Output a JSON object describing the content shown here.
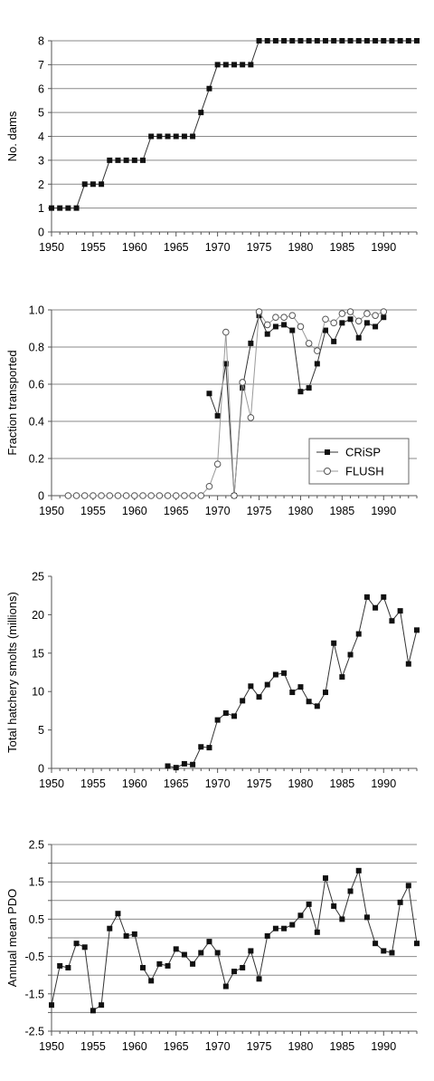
{
  "chart_data": [
    {
      "type": "line",
      "ylabel": "No. dams",
      "xlim": [
        1950,
        1994
      ],
      "ylim": [
        0,
        8
      ],
      "x_ticks": [
        1950,
        1955,
        1960,
        1965,
        1970,
        1975,
        1980,
        1985,
        1990
      ],
      "y_ticks": [
        0,
        1,
        2,
        3,
        4,
        5,
        6,
        7,
        8
      ],
      "y_tick_labels": [
        "0",
        "1",
        "2",
        "3",
        "4",
        "5",
        "6",
        "7",
        "8"
      ],
      "grid": true,
      "series": [
        {
          "marker": "square-filled",
          "x": [
            1950,
            1951,
            1952,
            1953,
            1954,
            1955,
            1956,
            1957,
            1958,
            1959,
            1960,
            1961,
            1962,
            1963,
            1964,
            1965,
            1966,
            1967,
            1968,
            1969,
            1970,
            1971,
            1972,
            1973,
            1974,
            1975,
            1976,
            1977,
            1978,
            1979,
            1980,
            1981,
            1982,
            1983,
            1984,
            1985,
            1986,
            1987,
            1988,
            1989,
            1990,
            1991,
            1992,
            1993,
            1994
          ],
          "y": [
            1,
            1,
            1,
            1,
            2,
            2,
            2,
            3,
            3,
            3,
            3,
            3,
            4,
            4,
            4,
            4,
            4,
            4,
            5,
            6,
            7,
            7,
            7,
            7,
            7,
            8,
            8,
            8,
            8,
            8,
            8,
            8,
            8,
            8,
            8,
            8,
            8,
            8,
            8,
            8,
            8,
            8,
            8,
            8,
            8
          ]
        }
      ]
    },
    {
      "type": "line",
      "ylabel": "Fraction transported",
      "xlim": [
        1950,
        1994
      ],
      "ylim": [
        0,
        1.0
      ],
      "x_ticks": [
        1950,
        1955,
        1960,
        1965,
        1970,
        1975,
        1980,
        1985,
        1990
      ],
      "y_ticks": [
        0,
        0.2,
        0.4,
        0.6,
        0.8,
        1.0
      ],
      "y_tick_labels": [
        "0",
        "0.2",
        "0.4",
        "0.6",
        "0.8",
        "1.0"
      ],
      "grid": true,
      "legend": "lower-right",
      "series": [
        {
          "name": "CRiSP",
          "marker": "square-filled",
          "x": [
            1969,
            1970,
            1971,
            1972,
            1973,
            1974,
            1975,
            1976,
            1977,
            1978,
            1979,
            1980,
            1981,
            1982,
            1983,
            1984,
            1985,
            1986,
            1987,
            1988,
            1989,
            1990
          ],
          "y": [
            0.55,
            0.43,
            0.71,
            0.0,
            0.58,
            0.82,
            0.97,
            0.87,
            0.91,
            0.92,
            0.89,
            0.56,
            0.58,
            0.71,
            0.89,
            0.83,
            0.93,
            0.95,
            0.85,
            0.93,
            0.91,
            0.96
          ]
        },
        {
          "name": "FLUSH",
          "marker": "circle-open",
          "x": [
            1952,
            1953,
            1954,
            1955,
            1956,
            1957,
            1958,
            1959,
            1960,
            1961,
            1962,
            1963,
            1964,
            1965,
            1966,
            1967,
            1968,
            1969,
            1970,
            1971,
            1972,
            1973,
            1974,
            1975,
            1976,
            1977,
            1978,
            1979,
            1980,
            1981,
            1982,
            1983,
            1984,
            1985,
            1986,
            1987,
            1988,
            1989,
            1990
          ],
          "y": [
            0,
            0,
            0,
            0,
            0,
            0,
            0,
            0,
            0,
            0,
            0,
            0,
            0,
            0,
            0,
            0,
            0,
            0.05,
            0.17,
            0.88,
            0.0,
            0.61,
            0.42,
            0.99,
            0.92,
            0.96,
            0.96,
            0.97,
            0.91,
            0.82,
            0.78,
            0.95,
            0.93,
            0.98,
            0.99,
            0.94,
            0.98,
            0.97,
            0.99
          ]
        }
      ]
    },
    {
      "type": "line",
      "ylabel": "Total hatchery smolts (millions)",
      "xlim": [
        1950,
        1994
      ],
      "ylim": [
        0,
        25
      ],
      "x_ticks": [
        1950,
        1955,
        1960,
        1965,
        1970,
        1975,
        1980,
        1985,
        1990
      ],
      "y_ticks": [
        0,
        5,
        10,
        15,
        20,
        25
      ],
      "y_tick_labels": [
        "0",
        "5",
        "10",
        "15",
        "20",
        "25"
      ],
      "grid": false,
      "series": [
        {
          "marker": "square-filled",
          "x": [
            1964,
            1965,
            1966,
            1967,
            1968,
            1969,
            1970,
            1971,
            1972,
            1973,
            1974,
            1975,
            1976,
            1977,
            1978,
            1979,
            1980,
            1981,
            1982,
            1983,
            1984,
            1985,
            1986,
            1987,
            1988,
            1989,
            1990,
            1991,
            1992,
            1993,
            1994
          ],
          "y": [
            0.3,
            0.1,
            0.6,
            0.5,
            2.8,
            2.7,
            6.3,
            7.2,
            6.8,
            8.8,
            10.7,
            9.3,
            10.9,
            12.2,
            12.4,
            9.9,
            10.6,
            8.7,
            8.1,
            9.9,
            16.3,
            11.9,
            14.8,
            17.5,
            22.3,
            20.9,
            22.3,
            19.2,
            20.5,
            13.6,
            18.0
          ]
        }
      ]
    },
    {
      "type": "line",
      "ylabel": "Annual mean PDO",
      "xlim": [
        1950,
        1994
      ],
      "ylim": [
        -2.5,
        2.5
      ],
      "x_ticks": [
        1950,
        1955,
        1960,
        1965,
        1970,
        1975,
        1980,
        1985,
        1990
      ],
      "y_ticks": [
        -2.5,
        -2.0,
        -1.5,
        -1.0,
        -0.5,
        0,
        0.5,
        1.0,
        1.5,
        2.0,
        2.5
      ],
      "y_tick_labels": [
        "-2.5",
        "",
        "-1.5",
        "",
        "-0.5",
        "",
        "0.5",
        "",
        "1.5",
        "",
        "2.5"
      ],
      "grid": true,
      "series": [
        {
          "marker": "square-filled",
          "x": [
            1950,
            1951,
            1952,
            1953,
            1954,
            1955,
            1956,
            1957,
            1958,
            1959,
            1960,
            1961,
            1962,
            1963,
            1964,
            1965,
            1966,
            1967,
            1968,
            1969,
            1970,
            1971,
            1972,
            1973,
            1974,
            1975,
            1976,
            1977,
            1978,
            1979,
            1980,
            1981,
            1982,
            1983,
            1984,
            1985,
            1986,
            1987,
            1988,
            1989,
            1990,
            1991,
            1992,
            1993,
            1994
          ],
          "y": [
            -1.8,
            -0.75,
            -0.8,
            -0.15,
            -0.25,
            -1.95,
            -1.8,
            0.25,
            0.65,
            0.05,
            0.1,
            -0.8,
            -1.15,
            -0.7,
            -0.75,
            -0.3,
            -0.45,
            -0.7,
            -0.4,
            -0.1,
            -0.4,
            -1.3,
            -0.9,
            -0.8,
            -0.35,
            -1.1,
            0.05,
            0.25,
            0.25,
            0.35,
            0.6,
            0.9,
            0.15,
            1.6,
            0.85,
            0.5,
            1.25,
            1.8,
            0.55,
            -0.15,
            -0.35,
            -0.4,
            0.95,
            1.4,
            -0.15
          ]
        }
      ]
    }
  ]
}
